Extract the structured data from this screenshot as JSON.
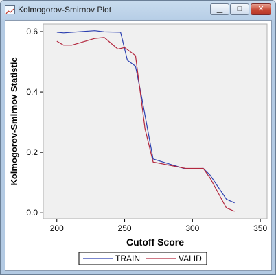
{
  "window": {
    "title": "Kolmogorov-Smirnov Plot",
    "minimize_glyph": "▁",
    "maximize_glyph": "□",
    "close_glyph": "✕",
    "icon": "chart-icon"
  },
  "colors": {
    "train": "#2b3fb0",
    "valid": "#b3283f",
    "plot_bg": "#f0f0f0"
  },
  "chart_data": {
    "type": "line",
    "title": "",
    "xlabel": "Cutoff Score",
    "ylabel": "Kolmogorov-Smirnov Statistic",
    "xlim": [
      190,
      355
    ],
    "ylim": [
      -0.02,
      0.625
    ],
    "xticks": [
      200,
      250,
      300,
      350
    ],
    "yticks": [
      0.0,
      0.2,
      0.4,
      0.6
    ],
    "ytick_labels": [
      "0.0",
      "0.2",
      "0.4",
      "0.6"
    ],
    "grid": false,
    "legend_position": "bottom-center",
    "series": [
      {
        "name": "TRAIN",
        "color": "#2b3fb0",
        "x": [
          200,
          205,
          228,
          235,
          247,
          252,
          258,
          262,
          271,
          295,
          308,
          313,
          325,
          331
        ],
        "y": [
          0.598,
          0.596,
          0.603,
          0.599,
          0.598,
          0.505,
          0.485,
          0.395,
          0.178,
          0.145,
          0.147,
          0.125,
          0.045,
          0.033
        ]
      },
      {
        "name": "VALID",
        "color": "#b3283f",
        "x": [
          200,
          205,
          211,
          228,
          235,
          245,
          250,
          258,
          265,
          271,
          295,
          308,
          313,
          325,
          331
        ],
        "y": [
          0.568,
          0.555,
          0.555,
          0.577,
          0.58,
          0.542,
          0.547,
          0.52,
          0.278,
          0.168,
          0.147,
          0.147,
          0.115,
          0.016,
          0.005
        ]
      }
    ]
  }
}
